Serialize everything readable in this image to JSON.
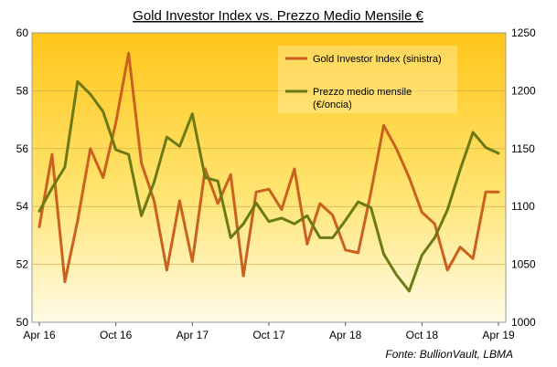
{
  "chart_data": {
    "type": "line",
    "title": "Gold Investor  Index vs. Prezzo Medio Mensile €",
    "source": "Fonte: BullionVault, LBMA",
    "x_tick_labels": [
      "Apr 16",
      "Oct 16",
      "Apr 17",
      "Oct 17",
      "Apr 18",
      "Oct 18",
      "Apr 19"
    ],
    "left_axis": {
      "ylim": [
        50,
        60
      ],
      "ticks": [
        "50",
        "52",
        "54",
        "56",
        "58",
        "60"
      ]
    },
    "right_axis": {
      "ylim": [
        1000,
        1250
      ],
      "ticks": [
        "1000",
        "1050",
        "1100",
        "1150",
        "1200",
        "1250"
      ]
    },
    "x": [
      "Apr 16",
      "May 16",
      "Jun 16",
      "Jul 16",
      "Aug 16",
      "Sep 16",
      "Oct 16",
      "Nov 16",
      "Dec 16",
      "Jan 17",
      "Feb 17",
      "Mar 17",
      "Apr 17",
      "May 17",
      "Jun 17",
      "Jul 17",
      "Aug 17",
      "Sep 17",
      "Oct 17",
      "Nov 17",
      "Dec 17",
      "Jan 18",
      "Feb 18",
      "Mar 18",
      "Apr 18",
      "May 18",
      "Jun 18",
      "Jul 18",
      "Aug 18",
      "Sep 18",
      "Oct 18",
      "Nov 18",
      "Dec 18",
      "Jan 19",
      "Feb 19",
      "Mar 19",
      "Apr 19"
    ],
    "legend": {
      "placement": "top-right"
    },
    "series": [
      {
        "name": "Gold Investor Index (sinistra)",
        "axis": "left",
        "color": "#c8621e",
        "values": [
          53.3,
          55.8,
          51.4,
          53.5,
          56.0,
          55.0,
          56.9,
          59.3,
          55.5,
          54.2,
          51.8,
          54.2,
          52.1,
          55.3,
          54.1,
          55.1,
          51.6,
          54.5,
          54.6,
          53.9,
          55.3,
          52.7,
          54.1,
          53.7,
          52.5,
          52.4,
          54.5,
          56.8,
          56.0,
          55.0,
          53.8,
          53.4,
          51.8,
          52.6,
          52.2,
          54.5,
          54.5
        ]
      },
      {
        "name": "Prezzo medio  mensile (€/oncia)",
        "name_lines": [
          "Prezzo medio  mensile",
          "(€/oncia)"
        ],
        "axis": "right",
        "color": "#6b7a15",
        "values": [
          1096,
          1116,
          1134,
          1208,
          1197,
          1182,
          1149,
          1145,
          1092,
          1121,
          1160,
          1152,
          1180,
          1125,
          1122,
          1073,
          1085,
          1103,
          1087,
          1090,
          1085,
          1092,
          1073,
          1073,
          1088,
          1104,
          1099,
          1059,
          1041,
          1027,
          1058,
          1073,
          1097,
          1132,
          1164,
          1151,
          1146
        ]
      }
    ]
  }
}
